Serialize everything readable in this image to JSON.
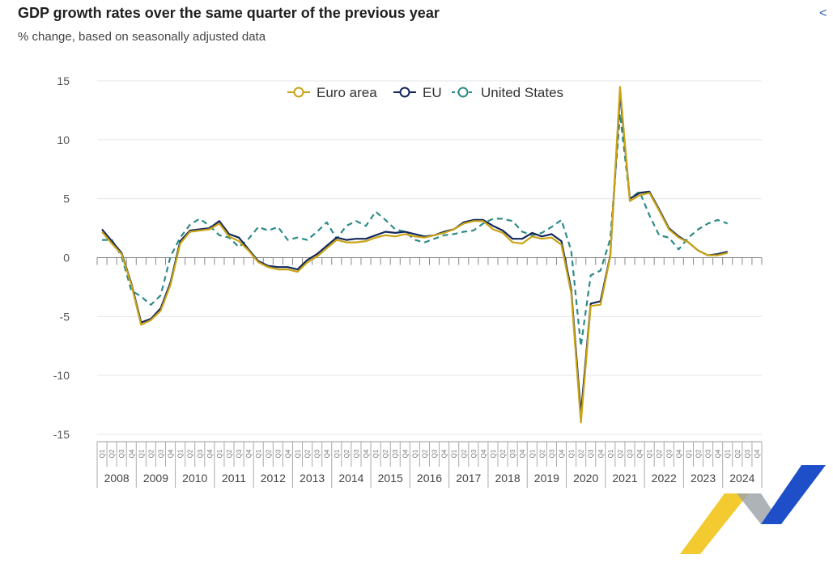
{
  "header": {
    "title": "GDP growth rates over the same quarter of the previous year",
    "subtitle": "% change, based on seasonally adjusted data"
  },
  "colors": {
    "euro_area": "#c9a414",
    "eu": "#13275c",
    "us": "#2e8b88",
    "grid": "#e3e6ec"
  },
  "chart_data": {
    "type": "line",
    "title": "GDP growth rates over the same quarter of the previous year",
    "subtitle": "% change, based on seasonally adjusted data",
    "ylim": [
      -15,
      15
    ],
    "yticks": [
      15,
      10,
      5,
      0,
      -5,
      -10,
      -15
    ],
    "quarter_labels": [
      "Q1",
      "Q2",
      "Q3",
      "Q4"
    ],
    "years": [
      "2008",
      "2009",
      "2010",
      "2011",
      "2012",
      "2013",
      "2014",
      "2015",
      "2016",
      "2017",
      "2018",
      "2019",
      "2020",
      "2021",
      "2022",
      "2023",
      "2024"
    ],
    "legend": [
      "Euro area",
      "EU",
      "United States"
    ],
    "series": [
      {
        "name": "Euro area",
        "style": "solid",
        "values": [
          2.2,
          1.2,
          0.3,
          -2.3,
          -5.7,
          -5.3,
          -4.5,
          -2.3,
          1.2,
          2.2,
          2.3,
          2.4,
          2.9,
          1.8,
          1.4,
          0.6,
          -0.4,
          -0.8,
          -1.0,
          -1.0,
          -1.2,
          -0.4,
          0.1,
          0.8,
          1.5,
          1.3,
          1.3,
          1.4,
          1.7,
          1.9,
          1.8,
          2.0,
          1.8,
          1.7,
          1.9,
          2.1,
          2.4,
          2.9,
          3.1,
          3.1,
          2.4,
          2.1,
          1.3,
          1.2,
          1.8,
          1.6,
          1.7,
          1.1,
          -3.0,
          -14.0,
          -4.1,
          -4.0,
          0.1,
          14.5,
          4.8,
          5.3,
          5.5,
          4.0,
          2.4,
          1.7,
          1.3,
          0.6,
          0.2,
          0.2,
          0.4
        ]
      },
      {
        "name": "EU",
        "style": "solid",
        "values": [
          2.4,
          1.4,
          0.4,
          -2.2,
          -5.5,
          -5.2,
          -4.3,
          -2.1,
          1.4,
          2.3,
          2.4,
          2.5,
          3.1,
          2.0,
          1.7,
          0.7,
          -0.3,
          -0.7,
          -0.8,
          -0.8,
          -1.0,
          -0.2,
          0.3,
          1.0,
          1.7,
          1.5,
          1.6,
          1.6,
          1.9,
          2.2,
          2.1,
          2.2,
          2.0,
          1.8,
          1.9,
          2.2,
          2.4,
          3.0,
          3.2,
          3.2,
          2.7,
          2.3,
          1.6,
          1.6,
          2.1,
          1.8,
          2.0,
          1.4,
          -2.7,
          -13.3,
          -3.9,
          -3.7,
          0.2,
          14.0,
          5.0,
          5.5,
          5.6,
          4.1,
          2.5,
          1.8,
          1.3,
          0.6,
          0.2,
          0.3,
          0.5
        ]
      },
      {
        "name": "United States",
        "style": "dashed",
        "values": [
          1.5,
          1.5,
          0.1,
          -2.8,
          -3.3,
          -4.0,
          -3.2,
          0.1,
          1.7,
          2.8,
          3.3,
          2.7,
          1.9,
          1.7,
          0.9,
          1.6,
          2.6,
          2.3,
          2.6,
          1.5,
          1.7,
          1.5,
          2.2,
          3.0,
          1.6,
          2.7,
          3.1,
          2.7,
          3.9,
          3.2,
          2.4,
          2.2,
          1.5,
          1.3,
          1.6,
          1.9,
          2.0,
          2.2,
          2.3,
          2.9,
          3.3,
          3.3,
          3.1,
          2.2,
          1.9,
          2.1,
          2.6,
          3.2,
          0.6,
          -7.5,
          -1.5,
          -1.1,
          1.6,
          12.2,
          5.0,
          5.6,
          3.6,
          1.9,
          1.7,
          0.7,
          1.7,
          2.4,
          2.9,
          3.2,
          2.9
        ]
      }
    ]
  }
}
